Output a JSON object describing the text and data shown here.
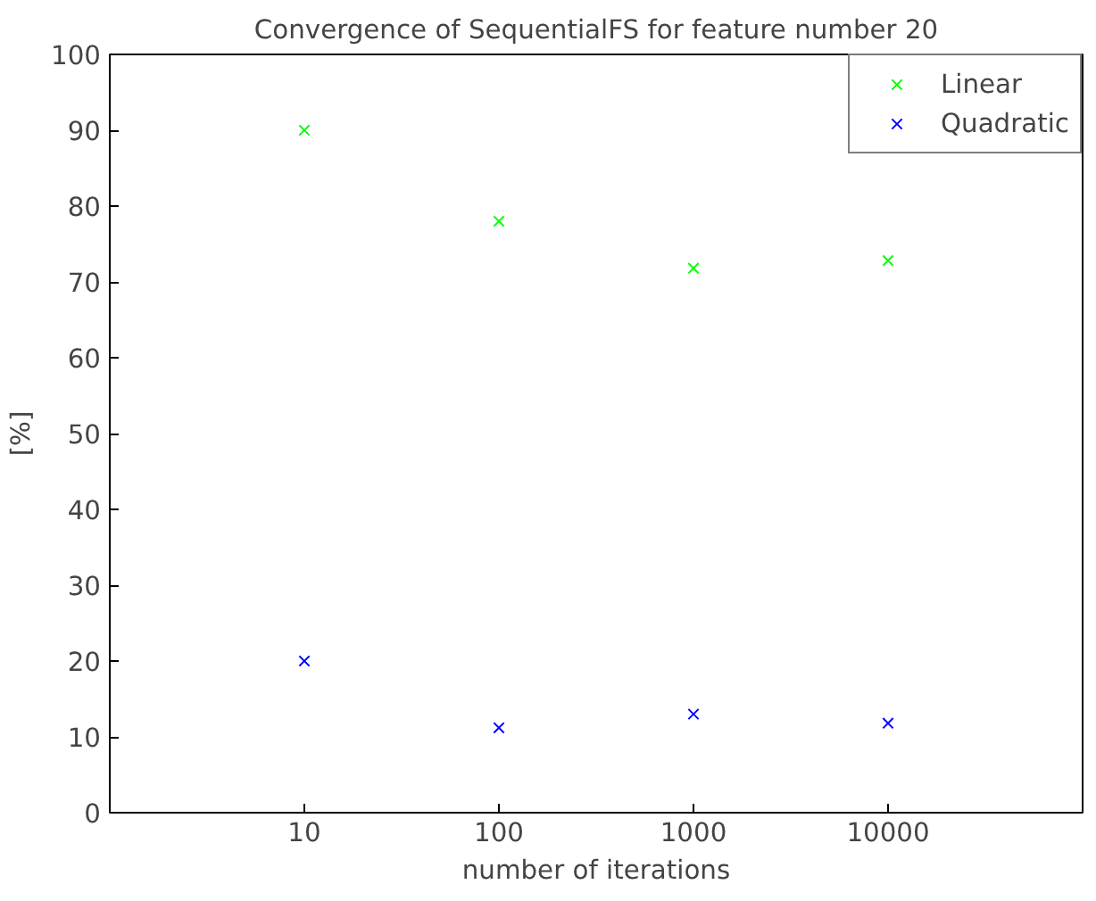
{
  "chart_data": {
    "type": "scatter",
    "title": "Convergence of SequentialFS for feature number 20",
    "xlabel": "number of iterations",
    "ylabel": "[%]",
    "x": [
      10,
      100,
      1000,
      10000
    ],
    "series": [
      {
        "name": "Linear",
        "color": "#00ff00",
        "values": [
          90,
          78,
          71.8,
          72.8
        ]
      },
      {
        "name": "Quadratic",
        "color": "#0000ff",
        "values": [
          20,
          11.2,
          13,
          11.8
        ]
      }
    ],
    "log": "x",
    "xlim": [
      1,
      100000
    ],
    "xticks": [
      10,
      100,
      1000,
      10000
    ],
    "ylim": [
      0,
      100
    ],
    "yticks": [
      0,
      10,
      20,
      30,
      40,
      50,
      60,
      70,
      80,
      90,
      100
    ],
    "grid": false,
    "legend": "top right",
    "marker": "cross"
  }
}
